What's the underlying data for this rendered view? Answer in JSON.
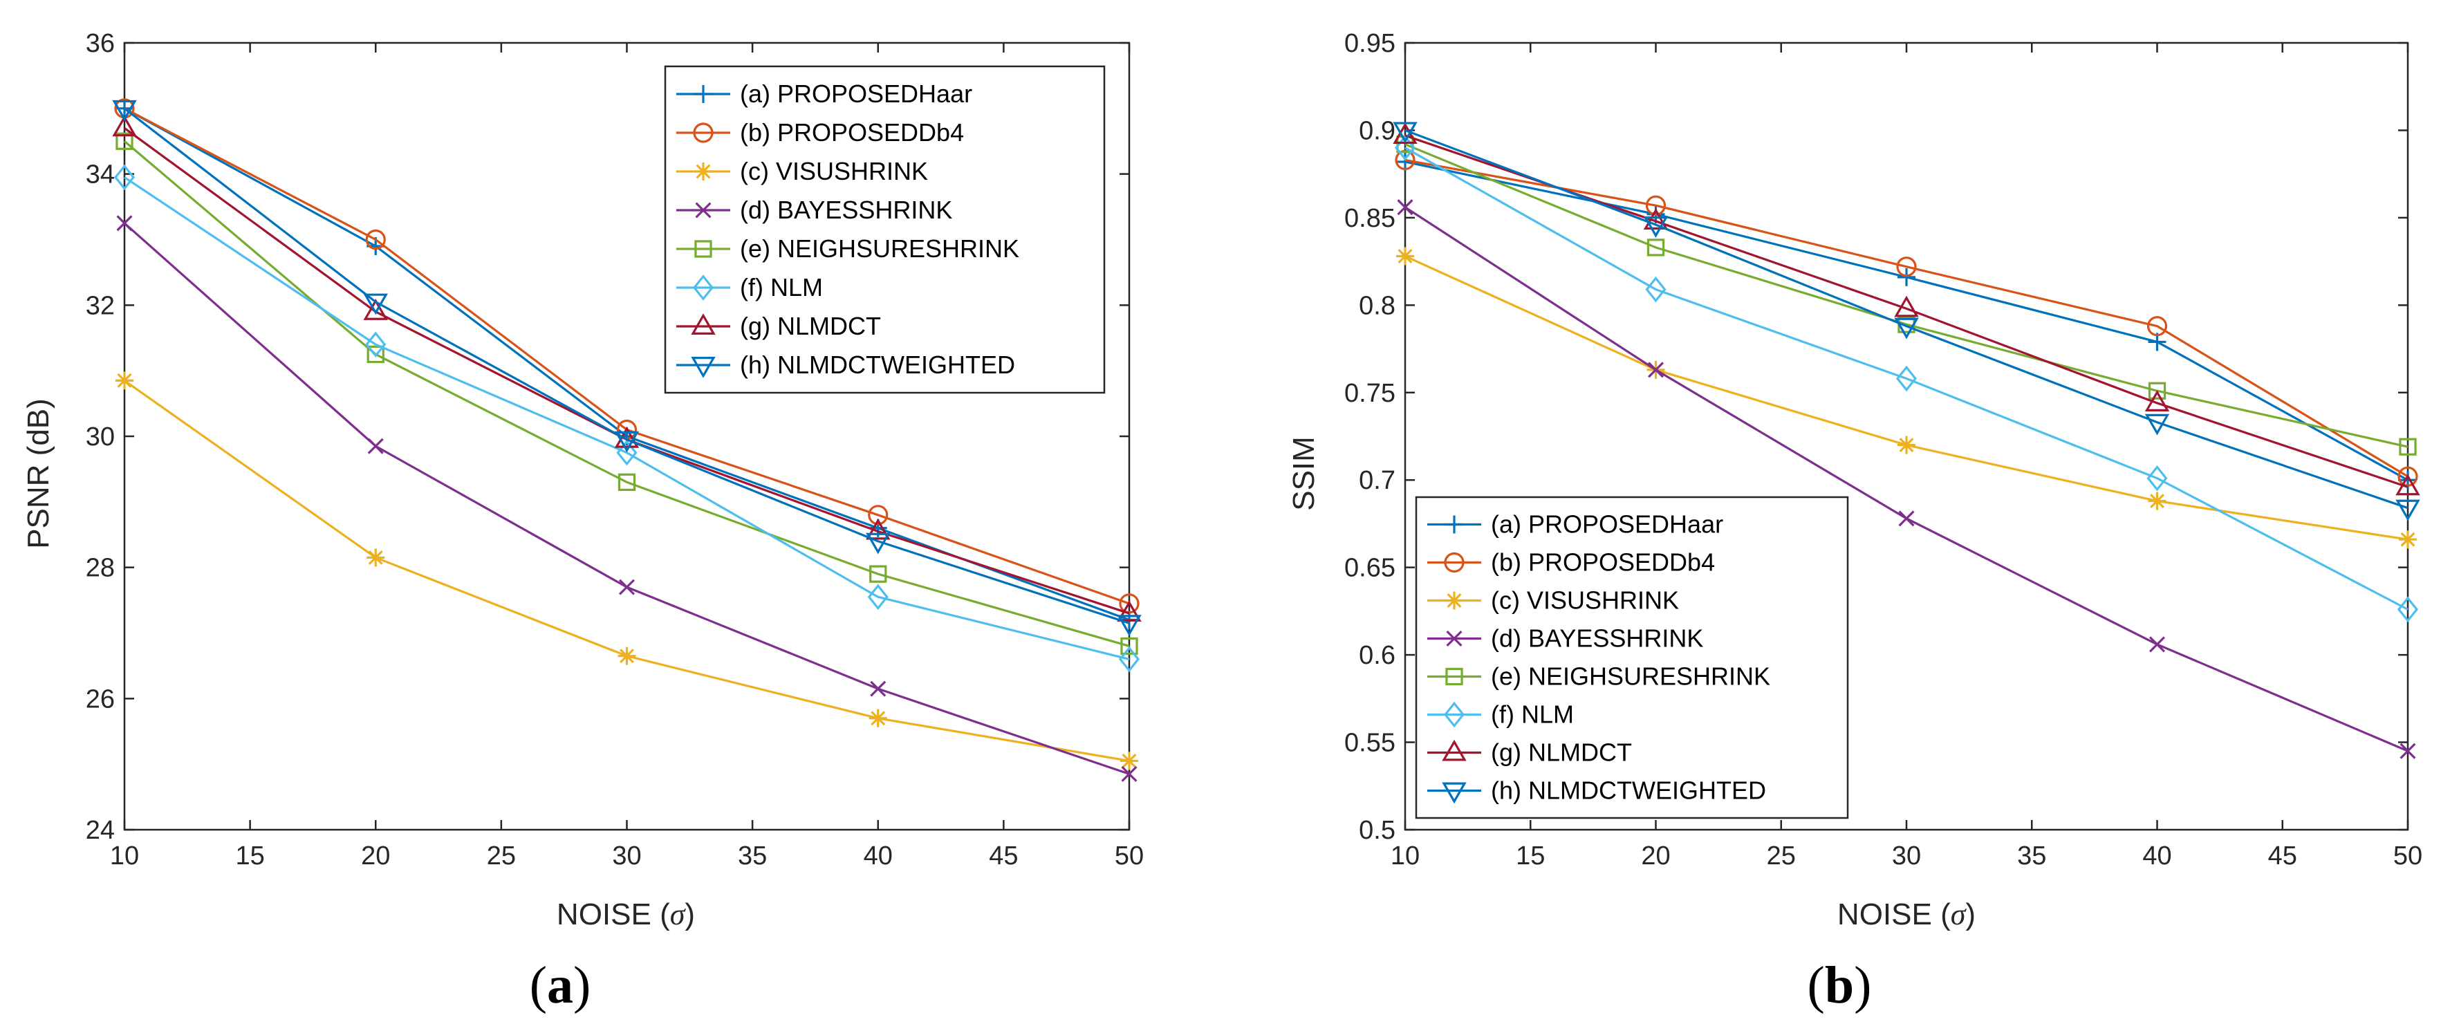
{
  "chart_data": [
    {
      "type": "line",
      "caption_letter": "a",
      "xlabel_main": "NOISE (",
      "xlabel_sym": "σ",
      "xlabel_end": ")",
      "ylabel": "PSNR (dB)",
      "xlim": [
        10,
        50
      ],
      "ylim": [
        24,
        36
      ],
      "xticks": [
        10,
        15,
        20,
        25,
        30,
        35,
        40,
        45,
        50
      ],
      "yticks": [
        24,
        26,
        28,
        30,
        32,
        34,
        36
      ],
      "legend_position": "top-right",
      "x": [
        10,
        20,
        30,
        40,
        50
      ],
      "series": [
        {
          "name": "(a) PROPOSEDHaar",
          "marker": "plus",
          "color": "#0072BD",
          "values": [
            35.0,
            32.9,
            30.0,
            28.6,
            27.2
          ]
        },
        {
          "name": "(b) PROPOSEDDb4",
          "marker": "circle",
          "color": "#D95319",
          "values": [
            35.0,
            33.0,
            30.1,
            28.8,
            27.45
          ]
        },
        {
          "name": "(c) VISUSHRINK",
          "marker": "asterisk",
          "color": "#EDB120",
          "values": [
            30.85,
            28.15,
            26.65,
            25.7,
            25.05
          ]
        },
        {
          "name": "(d) BAYESSHRINK",
          "marker": "x",
          "color": "#7E2F8E",
          "values": [
            33.25,
            29.85,
            27.7,
            26.15,
            24.85
          ]
        },
        {
          "name": "(e) NEIGHSURESHRINK",
          "marker": "square",
          "color": "#77AC30",
          "values": [
            34.5,
            31.25,
            29.3,
            27.9,
            26.8
          ]
        },
        {
          "name": "(f) NLM",
          "marker": "diamond",
          "color": "#4DBEEE",
          "values": [
            33.95,
            31.4,
            29.75,
            27.55,
            26.6
          ]
        },
        {
          "name": "(g) NLMDCT",
          "marker": "triangle-up",
          "color": "#A2142F",
          "values": [
            34.7,
            31.9,
            29.95,
            28.55,
            27.3
          ]
        },
        {
          "name": "(h) NLMDCTWEIGHTED",
          "marker": "triangle-down",
          "color": "#0072BD",
          "values": [
            35.0,
            32.05,
            29.95,
            28.4,
            27.15
          ]
        }
      ]
    },
    {
      "type": "line",
      "caption_letter": "b",
      "xlabel_main": "NOISE (",
      "xlabel_sym": "σ",
      "xlabel_end": ")",
      "ylabel": "SSIM",
      "xlim": [
        10,
        50
      ],
      "ylim": [
        0.5,
        0.95
      ],
      "xticks": [
        10,
        15,
        20,
        25,
        30,
        35,
        40,
        45,
        50
      ],
      "yticks": [
        0.5,
        0.55,
        0.6,
        0.65,
        0.7,
        0.75,
        0.8,
        0.85,
        0.9,
        0.95
      ],
      "legend_position": "bottom-left",
      "x": [
        10,
        20,
        30,
        40,
        50
      ],
      "series": [
        {
          "name": "(a) PROPOSEDHaar",
          "marker": "plus",
          "color": "#0072BD",
          "values": [
            0.882,
            0.852,
            0.816,
            0.779,
            0.7
          ]
        },
        {
          "name": "(b) PROPOSEDDb4",
          "marker": "circle",
          "color": "#D95319",
          "values": [
            0.883,
            0.857,
            0.822,
            0.788,
            0.702
          ]
        },
        {
          "name": "(c) VISUSHRINK",
          "marker": "asterisk",
          "color": "#EDB120",
          "values": [
            0.828,
            0.763,
            0.72,
            0.688,
            0.666
          ]
        },
        {
          "name": "(d) BAYESSHRINK",
          "marker": "x",
          "color": "#7E2F8E",
          "values": [
            0.856,
            0.763,
            0.678,
            0.606,
            0.545
          ]
        },
        {
          "name": "(e) NEIGHSURESHRINK",
          "marker": "square",
          "color": "#77AC30",
          "values": [
            0.892,
            0.833,
            0.789,
            0.751,
            0.719
          ]
        },
        {
          "name": "(f) NLM",
          "marker": "diamond",
          "color": "#4DBEEE",
          "values": [
            0.89,
            0.809,
            0.758,
            0.701,
            0.626
          ]
        },
        {
          "name": "(g) NLMDCT",
          "marker": "triangle-up",
          "color": "#A2142F",
          "values": [
            0.897,
            0.848,
            0.798,
            0.744,
            0.696
          ]
        },
        {
          "name": "(h) NLMDCTWEIGHTED",
          "marker": "triangle-down",
          "color": "#0072BD",
          "values": [
            0.9,
            0.846,
            0.788,
            0.733,
            0.684
          ]
        }
      ]
    }
  ]
}
